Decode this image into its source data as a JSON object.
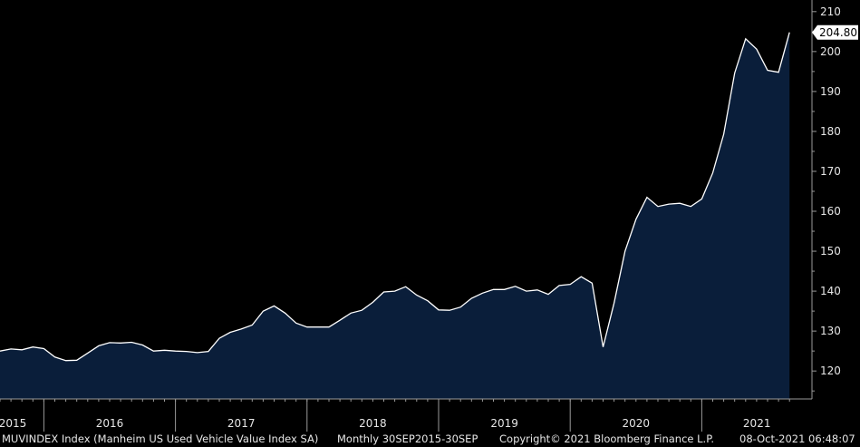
{
  "chart_data": {
    "type": "area",
    "ylim": [
      113,
      212
    ],
    "yticks": [
      120,
      130,
      140,
      150,
      160,
      170,
      180,
      190,
      200,
      210
    ],
    "year_labels": [
      "2015",
      "2016",
      "2017",
      "2018",
      "2019",
      "2020",
      "2021"
    ],
    "last_value_label": "204.80",
    "grid": false,
    "series": [
      {
        "values": [
          125.0,
          125.5,
          125.3,
          126.0,
          125.6,
          123.5,
          122.6,
          122.7,
          124.5,
          126.3,
          127.1,
          127.0,
          127.2,
          126.5,
          125.0,
          125.2,
          125.0,
          124.9,
          124.6,
          124.9,
          128.2,
          129.7,
          130.5,
          131.5,
          135.0,
          136.3,
          134.5,
          132.0,
          131.0,
          131.0,
          131.0,
          132.7,
          134.5,
          135.2,
          137.2,
          139.8,
          140.0,
          141.1,
          139.0,
          137.6,
          135.3,
          135.2,
          136.0,
          138.2,
          139.5,
          140.4,
          140.4,
          141.2,
          140.0,
          140.3,
          139.2,
          141.4,
          141.7,
          143.6,
          142.0,
          126.0,
          137.0,
          150.0,
          158.0,
          163.5,
          161.2,
          161.8,
          162.0,
          161.2,
          163.1,
          169.6,
          179.3,
          194.6,
          203.2,
          200.6,
          195.3,
          194.8,
          204.8
        ]
      }
    ]
  },
  "footer": {
    "ticker": "MUVINDEX Index (Manheim US Used Vehicle Value Index SA)",
    "period": "Monthly 30SEP2015-30SEP",
    "copyright": "Copyright© 2021 Bloomberg Finance L.P.",
    "timestamp": "08-Oct-2021 06:48:07"
  },
  "colors": {
    "background": "#000000",
    "fill": "#0a1e3a",
    "line": "#ffffff",
    "label_box": "#ffffff",
    "label_text": "#000000",
    "text": "#e6e6e6"
  }
}
